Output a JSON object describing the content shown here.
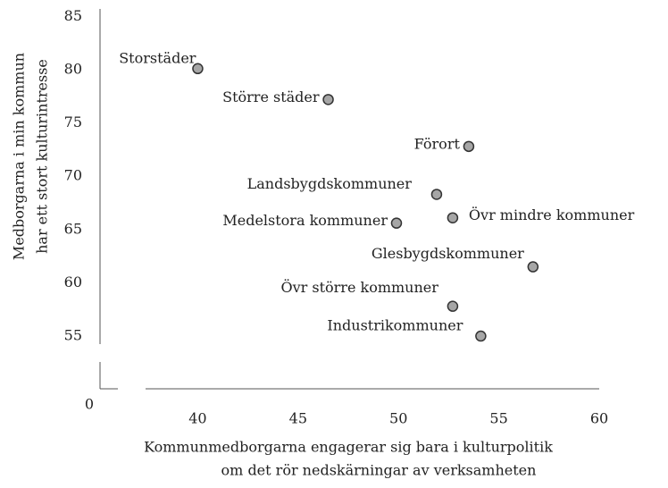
{
  "chart_data": {
    "type": "scatter",
    "x_label": [
      "Kommunmedborgarna engagerar sig bara i kulturpolitik",
      "om det rör nedskärningar av verksamheten"
    ],
    "y_label": [
      "Medborgarna i min kommun",
      "har ett stort kulturintresse"
    ],
    "origin_label": "0",
    "points": [
      {
        "label": "Storstäder",
        "x": 40,
        "y": 80.1
      },
      {
        "label": "Större städer",
        "x": 46.5,
        "y": 77.2
      },
      {
        "label": "Förort",
        "x": 53.5,
        "y": 72.8
      },
      {
        "label": "Landsbygdskommuner",
        "x": 51.9,
        "y": 68.3
      },
      {
        "label": "Medelstora kommuner",
        "x": 49.9,
        "y": 65.6
      },
      {
        "label": "Övr mindre kommuner",
        "x": 52.7,
        "y": 66.1
      },
      {
        "label": "Glesbygdskommuner",
        "x": 56.7,
        "y": 61.5
      },
      {
        "label": "Övr större kommuner",
        "x": 52.7,
        "y": 57.8
      },
      {
        "label": "Industrikommuner",
        "x": 54.1,
        "y": 55.0
      }
    ],
    "color": "#a6a6a6",
    "xlim": [
      37.4,
      60
    ],
    "xticks": [
      40,
      45,
      50,
      55,
      60
    ],
    "ylim": [
      54.25,
      85.7
    ],
    "yticks": [
      55,
      60,
      65,
      70,
      75,
      80,
      85
    ]
  }
}
